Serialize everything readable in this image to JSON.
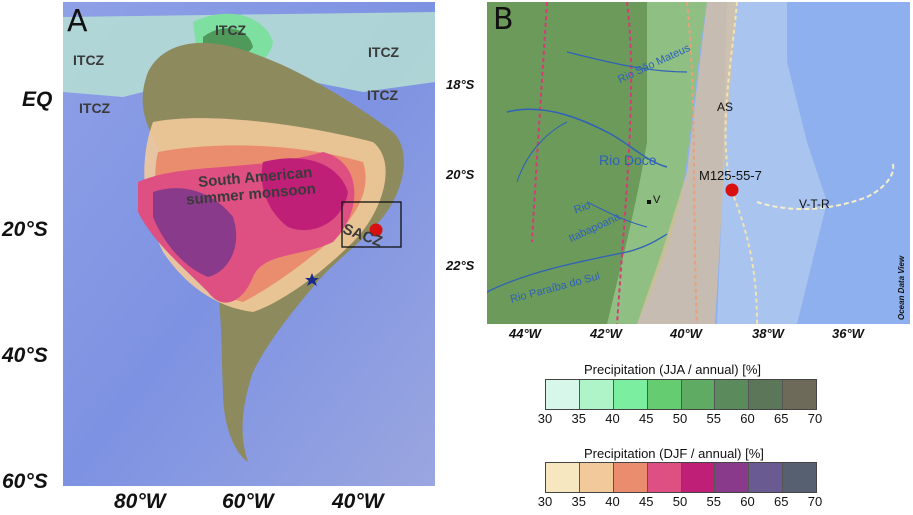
{
  "panel_a": {
    "letter": "A",
    "lat_labels": [
      "EQ",
      "20°S",
      "40°S",
      "60°S"
    ],
    "lon_labels": [
      "80°W",
      "60°W",
      "40°W"
    ],
    "itcz_label": "ITCZ",
    "monsoon_line1": "South American",
    "monsoon_line2": "summer monsoon",
    "sacz_label": "SACZ"
  },
  "panel_b": {
    "letter": "B",
    "lat_labels": [
      "18°S",
      "20°S",
      "22°S"
    ],
    "lon_labels": [
      "44°W",
      "42°W",
      "40°W",
      "38°W",
      "36°W"
    ],
    "rivers": [
      "Rio São Mateus",
      "Rio Doce",
      "Rio",
      "Itabapoana",
      "Rio Paraíba do Sul"
    ],
    "site_label": "M125-55-7",
    "v_label": "V",
    "as_label": "AS",
    "vtr_label": "V-T-R",
    "credit": "Ocean Data View"
  },
  "colorbars": [
    {
      "title": "Precipitation (JJA / annual) [%]",
      "ticks": [
        "30",
        "35",
        "40",
        "45",
        "50",
        "55",
        "60",
        "65",
        "70"
      ],
      "colors": [
        "#d6f7ea",
        "#aef4c8",
        "#7ceea0",
        "#66cc72",
        "#5fab63",
        "#5b8a5c",
        "#5c7659",
        "#6e6a5a"
      ]
    },
    {
      "title": "Precipitation (DJF / annual) [%]",
      "ticks": [
        "30",
        "35",
        "40",
        "45",
        "50",
        "55",
        "60",
        "65",
        "70"
      ],
      "colors": [
        "#f6e7c0",
        "#f2c99a",
        "#ea8c6e",
        "#de4f82",
        "#c01f78",
        "#8a3a8a",
        "#6a5a92",
        "#566070"
      ]
    }
  ],
  "markers": {
    "site_color": "#d8100f",
    "star_color": "#1a2a8a"
  }
}
